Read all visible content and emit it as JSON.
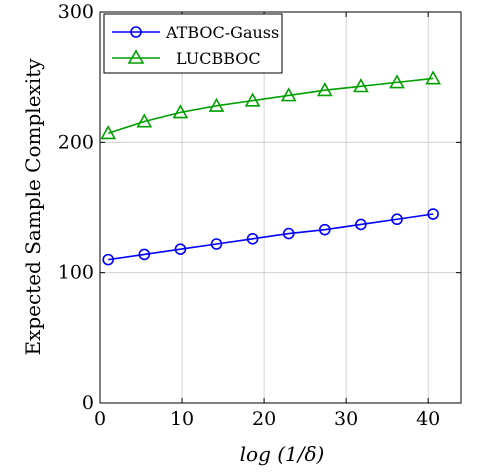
{
  "chart_data": {
    "type": "line",
    "xlabel": "log (1/δ)",
    "ylabel": "Expected Sample Complexity",
    "xlim": [
      0,
      44
    ],
    "ylim": [
      0,
      300
    ],
    "x_ticks": [
      0,
      10,
      20,
      30,
      40
    ],
    "y_ticks": [
      0,
      100,
      200,
      300
    ],
    "x_tick_labels": [
      "0",
      "10",
      "20",
      "30",
      "40"
    ],
    "y_tick_labels": [
      "0",
      "100",
      "200",
      "300"
    ],
    "grid": true,
    "legend_position": "top-left",
    "x": [
      1.0,
      5.4,
      9.8,
      14.2,
      18.6,
      23.0,
      27.4,
      31.8,
      36.2,
      40.6
    ],
    "series": [
      {
        "name": "ATBOC-Gauss",
        "color": "#0000ff",
        "marker": "circle",
        "values": [
          110,
          114,
          118,
          122,
          126,
          130,
          133,
          137,
          141,
          145
        ]
      },
      {
        "name": "LUCBBOC",
        "color": "#00a000",
        "marker": "triangle",
        "values": [
          207,
          216,
          223,
          228,
          232,
          236,
          240,
          243,
          246,
          249
        ]
      }
    ]
  }
}
